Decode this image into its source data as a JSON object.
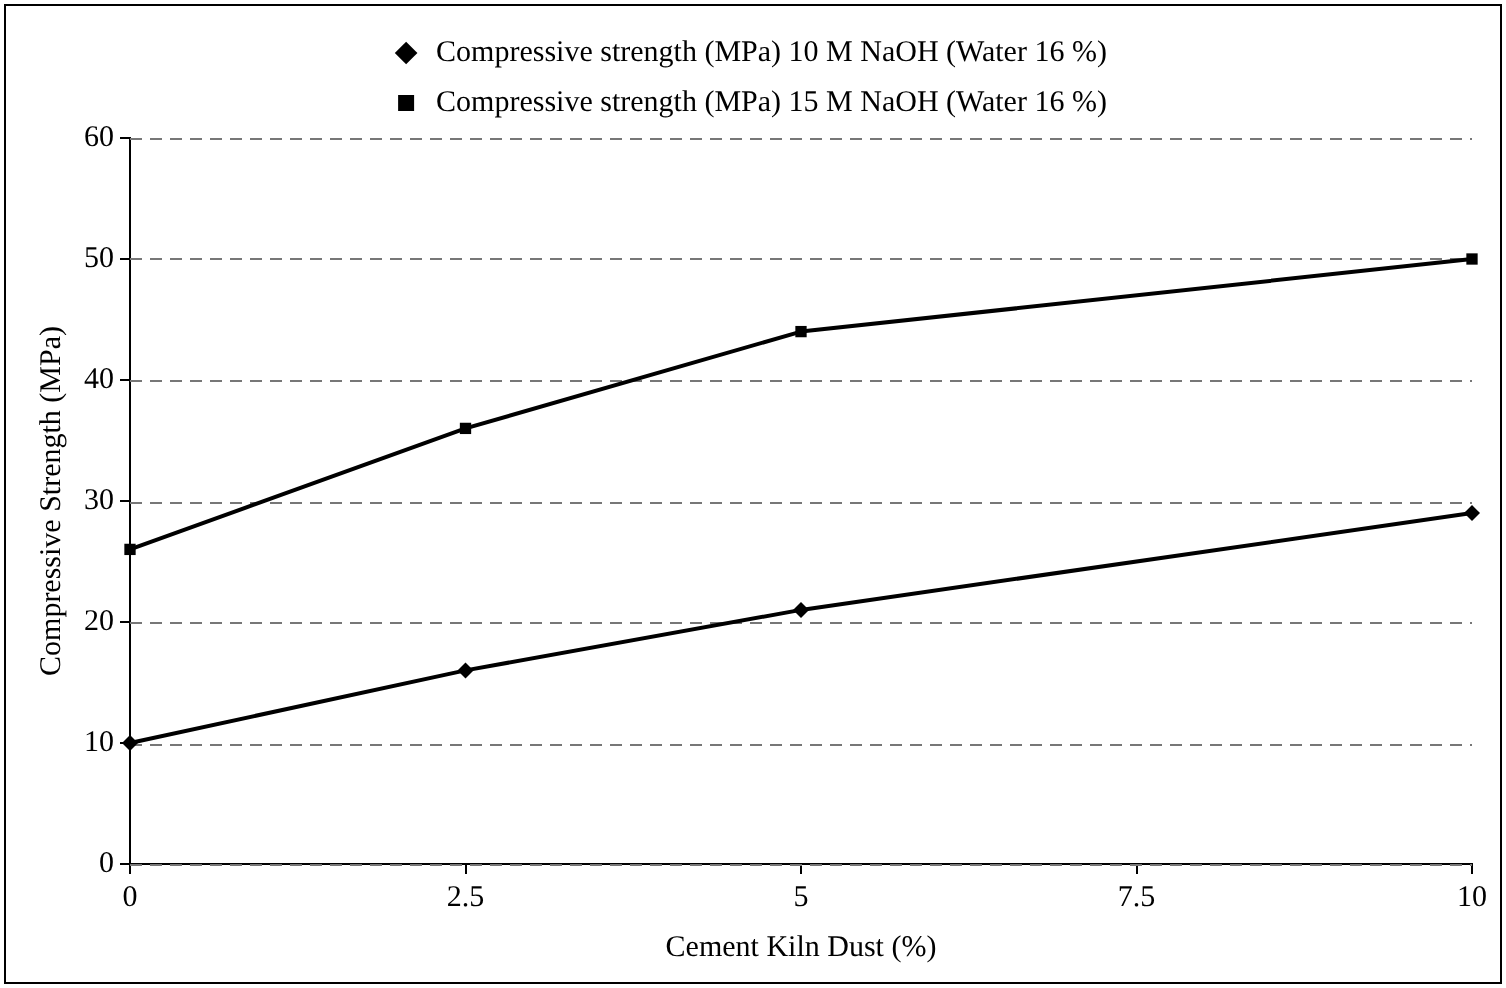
{
  "chart_data": {
    "type": "line",
    "xlabel": "Cement Kiln Dust (%)",
    "ylabel": "Compressive Strength (MPa)",
    "x": [
      0,
      2.5,
      5,
      10
    ],
    "series": [
      {
        "name": "Compressive strength (MPa) 10 M NaOH (Water 16 %)",
        "color": "#000000",
        "marker": "diamond",
        "values": [
          10,
          16,
          21,
          29
        ]
      },
      {
        "name": "Compressive strength (MPa) 15 M NaOH (Water 16 %)",
        "color": "#000000",
        "marker": "square",
        "values": [
          26,
          36,
          44,
          50
        ]
      }
    ],
    "xlim": [
      0,
      10
    ],
    "xticks": [
      0,
      2.5,
      5,
      7.5,
      10
    ],
    "ylim": [
      0,
      60
    ],
    "yticks": [
      0,
      10,
      20,
      30,
      40,
      50,
      60
    ],
    "grid": "y",
    "legend": "top",
    "line_style": "solid"
  }
}
